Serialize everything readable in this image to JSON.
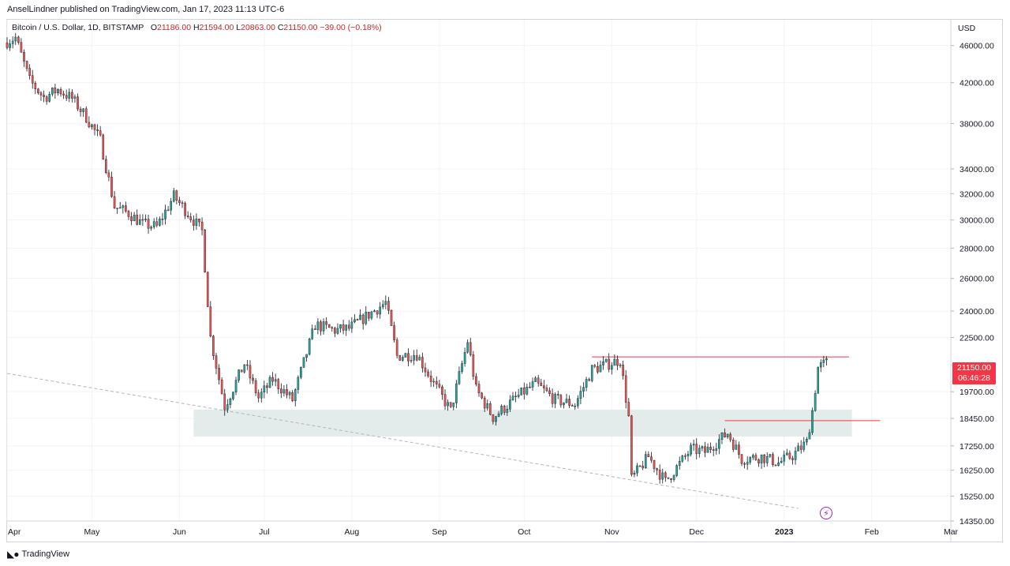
{
  "header": {
    "publisher": "AnselLindner published on TradingView.com, Jan 17, 2023 11:13 UTC-6"
  },
  "legend": {
    "symbol": "Bitcoin / U.S. Dollar, 1D, BITSTAMP",
    "open_label": "O",
    "open": "21186.00",
    "high_label": "H",
    "high": "21594.00",
    "low_label": "L",
    "low": "20863.00",
    "close_label": "C",
    "close": "21150.00",
    "change": "−39.00 (−0.18%)"
  },
  "price_axis": {
    "currency": "USD",
    "last_price": "21150.00",
    "countdown": "06:46:28"
  },
  "footer": {
    "brand": "TradingView",
    "logo": "tradingview-logo"
  },
  "colors": {
    "up": "#26a69a",
    "down": "#ef5350",
    "wick": "#131722",
    "zone": "#dfe9e7",
    "resistance": "#f23645",
    "trend": "#b2b5be",
    "accent": "#9c27b0"
  },
  "icons": {
    "flash": "flash-icon"
  },
  "chart_data": {
    "type": "candlestick",
    "y_scale": "log",
    "ylim": [
      14350,
      49000
    ],
    "y_ticks": [
      46000,
      42000,
      38000,
      34000,
      32000,
      30000,
      28000,
      26000,
      24000,
      22500,
      19700,
      18450,
      17250,
      16250,
      15250,
      14350
    ],
    "y_tick_labels": [
      "46000.00",
      "42000.00",
      "38000.00",
      "34000.00",
      "32000.00",
      "30000.00",
      "28000.00",
      "26000.00",
      "24000.00",
      "22500.00",
      "19700.00",
      "18450.00",
      "17250.00",
      "16250.00",
      "15250.00",
      "14350.00"
    ],
    "x_range": [
      "2022-04-01",
      "2023-03-01"
    ],
    "x_ticks": [
      {
        "date": "2022-04-01",
        "label": "Apr"
      },
      {
        "date": "2022-05-01",
        "label": "May"
      },
      {
        "date": "2022-06-01",
        "label": "Jun"
      },
      {
        "date": "2022-07-01",
        "label": "Jul"
      },
      {
        "date": "2022-08-01",
        "label": "Aug"
      },
      {
        "date": "2022-09-01",
        "label": "Sep"
      },
      {
        "date": "2022-10-01",
        "label": "Oct"
      },
      {
        "date": "2022-11-01",
        "label": "Nov"
      },
      {
        "date": "2022-12-01",
        "label": "Dec"
      },
      {
        "date": "2023-01-01",
        "label": "2023",
        "bold": true
      },
      {
        "date": "2023-02-01",
        "label": "Feb"
      },
      {
        "date": "2023-03-01",
        "label": "Mar"
      }
    ],
    "zone": {
      "x0": "2022-06-06",
      "x1": "2023-01-25",
      "y0": 17650,
      "y1": 18850
    },
    "resistance_lines": [
      {
        "x0": "2022-10-25",
        "x1": "2023-01-24",
        "y": 21450
      },
      {
        "x0": "2022-12-11",
        "x1": "2023-02-04",
        "y": 18350
      }
    ],
    "trend_line": {
      "x0": "2022-04-01",
      "y0": 20600,
      "x1": "2023-01-06",
      "y1": 14800
    },
    "closes": [
      {
        "date": "2022-04-01",
        "close": 46300
      },
      {
        "date": "2022-04-05",
        "close": 46900
      },
      {
        "date": "2022-04-10",
        "close": 42200
      },
      {
        "date": "2022-04-15",
        "close": 40500
      },
      {
        "date": "2022-04-20",
        "close": 41300
      },
      {
        "date": "2022-04-25",
        "close": 40400
      },
      {
        "date": "2022-04-30",
        "close": 38600
      },
      {
        "date": "2022-05-05",
        "close": 36500
      },
      {
        "date": "2022-05-10",
        "close": 31000
      },
      {
        "date": "2022-05-15",
        "close": 30500
      },
      {
        "date": "2022-05-20",
        "close": 29700
      },
      {
        "date": "2022-05-25",
        "close": 29500
      },
      {
        "date": "2022-05-31",
        "close": 31800
      },
      {
        "date": "2022-06-05",
        "close": 30500
      },
      {
        "date": "2022-06-10",
        "close": 29200
      },
      {
        "date": "2022-06-13",
        "close": 22500
      },
      {
        "date": "2022-06-18",
        "close": 19000
      },
      {
        "date": "2022-06-25",
        "close": 21100
      },
      {
        "date": "2022-06-30",
        "close": 19400
      },
      {
        "date": "2022-07-05",
        "close": 20300
      },
      {
        "date": "2022-07-12",
        "close": 19300
      },
      {
        "date": "2022-07-20",
        "close": 23200
      },
      {
        "date": "2022-07-27",
        "close": 22900
      },
      {
        "date": "2022-08-01",
        "close": 23000
      },
      {
        "date": "2022-08-08",
        "close": 23800
      },
      {
        "date": "2022-08-14",
        "close": 24500
      },
      {
        "date": "2022-08-18",
        "close": 21500
      },
      {
        "date": "2022-08-25",
        "close": 21600
      },
      {
        "date": "2022-08-31",
        "close": 20100
      },
      {
        "date": "2022-09-06",
        "close": 18800
      },
      {
        "date": "2022-09-12",
        "close": 22300
      },
      {
        "date": "2022-09-15",
        "close": 19800
      },
      {
        "date": "2022-09-21",
        "close": 18500
      },
      {
        "date": "2022-09-30",
        "close": 19500
      },
      {
        "date": "2022-10-06",
        "close": 20100
      },
      {
        "date": "2022-10-13",
        "close": 19300
      },
      {
        "date": "2022-10-20",
        "close": 19100
      },
      {
        "date": "2022-10-26",
        "close": 20800
      },
      {
        "date": "2022-11-05",
        "close": 21300
      },
      {
        "date": "2022-11-08",
        "close": 18500
      },
      {
        "date": "2022-11-09",
        "close": 15900
      },
      {
        "date": "2022-11-15",
        "close": 16800
      },
      {
        "date": "2022-11-21",
        "close": 15800
      },
      {
        "date": "2022-11-30",
        "close": 17100
      },
      {
        "date": "2022-12-05",
        "close": 17000
      },
      {
        "date": "2022-12-13",
        "close": 17800
      },
      {
        "date": "2022-12-18",
        "close": 16700
      },
      {
        "date": "2022-12-25",
        "close": 16800
      },
      {
        "date": "2022-12-31",
        "close": 16550
      },
      {
        "date": "2023-01-05",
        "close": 16850
      },
      {
        "date": "2023-01-10",
        "close": 17400
      },
      {
        "date": "2023-01-12",
        "close": 18800
      },
      {
        "date": "2023-01-14",
        "close": 20900
      },
      {
        "date": "2023-01-17",
        "close": 21150
      }
    ]
  }
}
